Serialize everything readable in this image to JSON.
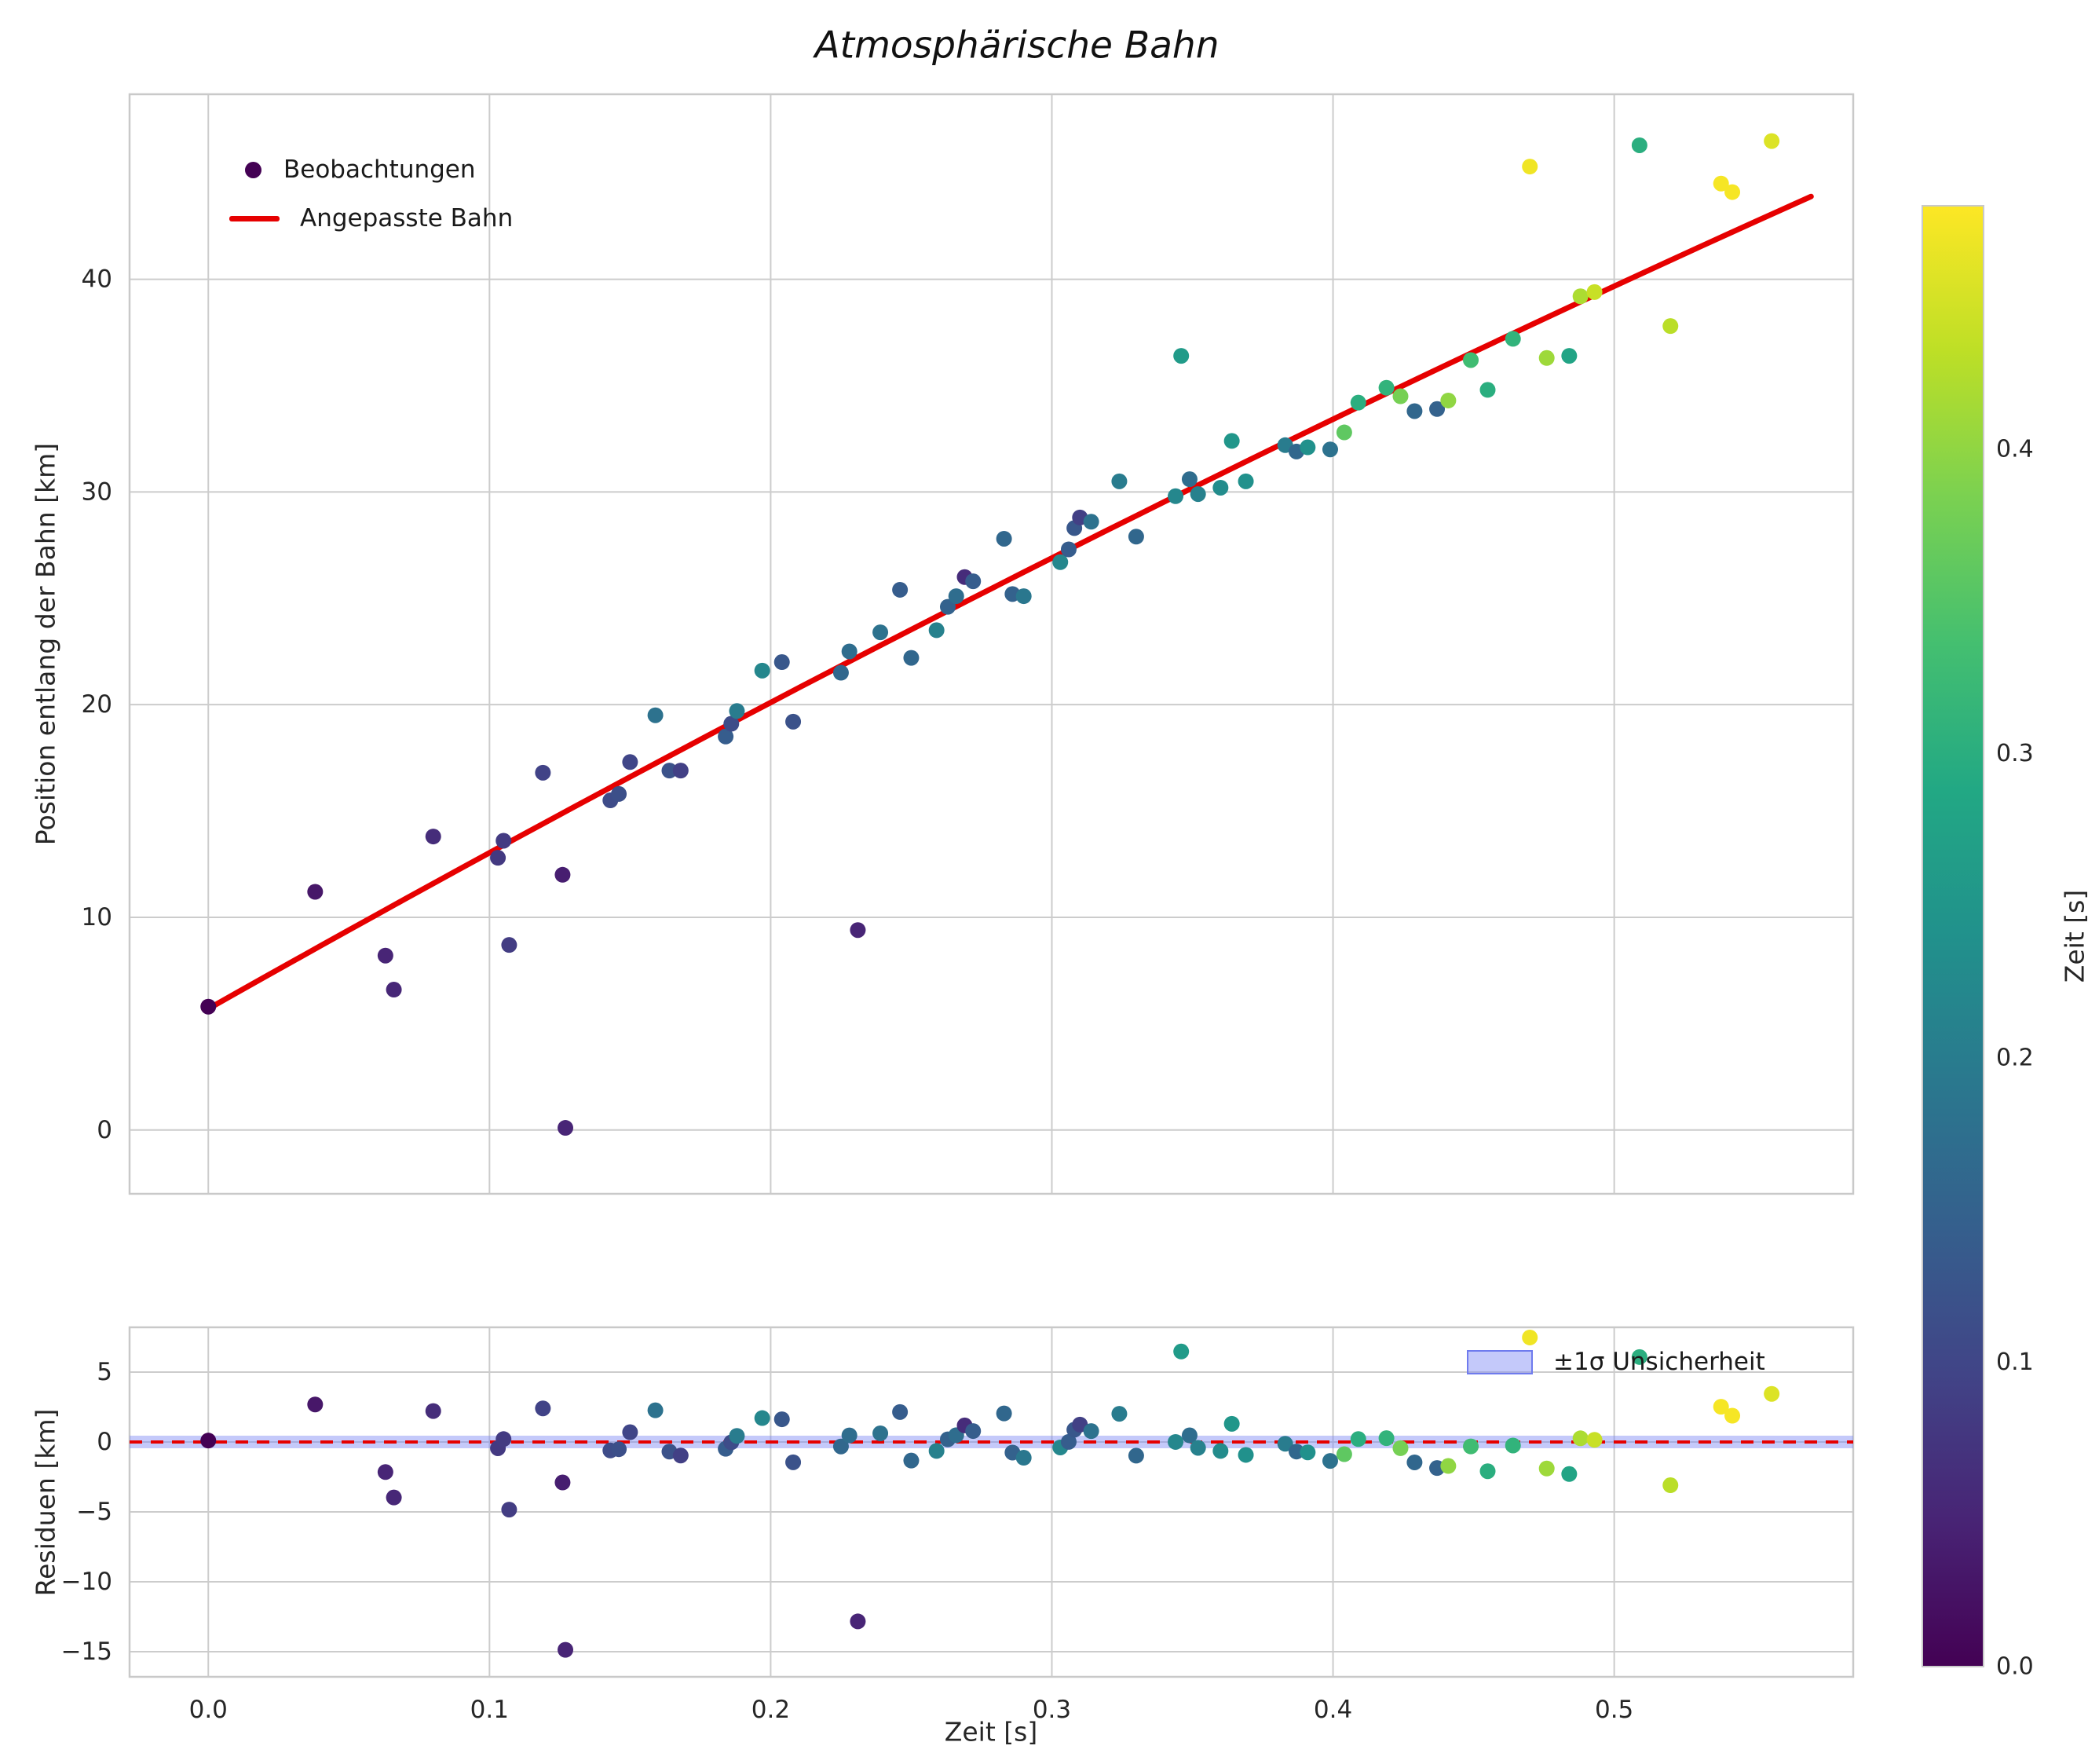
{
  "chart_data": {
    "type": "scatter",
    "title": "Atmosphärische Bahn",
    "xlabel": "Zeit [s]",
    "ylabel_main": "Position entlang der Bahn [km]",
    "ylabel_residuals": "Residuen [km]",
    "colorbar_label": "Zeit [s]",
    "legend": {
      "observations": "Beobachtungen",
      "fit": "Angepasste Bahn",
      "uncertainty": "±1σ Unsicherheit"
    },
    "xlim": [
      -0.028,
      0.585
    ],
    "ylim_main": [
      -3.0,
      48.7
    ],
    "ylim_residuals": [
      -16.8,
      8.2
    ],
    "xticks": {
      "values": [
        0.0,
        0.1,
        0.2,
        0.3,
        0.4,
        0.5
      ],
      "labels": [
        "0.0",
        "0.1",
        "0.2",
        "0.3",
        "0.4",
        "0.5"
      ]
    },
    "yticks_main": {
      "values": [
        0,
        10,
        20,
        30,
        40
      ],
      "labels": [
        "0",
        "10",
        "20",
        "30",
        "40"
      ]
    },
    "yticks_residuals": {
      "values": [
        -15,
        -10,
        -5,
        0,
        5
      ],
      "labels": [
        "−15",
        "−10",
        "−5",
        "0",
        "5"
      ]
    },
    "colorbar": {
      "vmin": 0.0,
      "vmax": 0.48,
      "ticks": {
        "values": [
          0.0,
          0.1,
          0.2,
          0.3,
          0.4
        ],
        "labels": [
          "0.0",
          "0.1",
          "0.2",
          "0.3",
          "0.4"
        ]
      }
    },
    "fit": {
      "a": 5.7,
      "b": 74.7,
      "c": -13.5,
      "t_min": 0.0,
      "t_max": 0.57
    },
    "uncertainty_band": {
      "half_width": 0.45
    },
    "colors": {
      "fit_line": "#e60000",
      "zero_line": "#e60000",
      "band_fill": "rgba(125,135,245,0.45)",
      "band_edge": "#6f7bee",
      "grid": "#cccccc",
      "frame": "#c9c9c9",
      "tick_text": "#262626",
      "marker_dark": "#440154"
    },
    "viridis_stops": [
      "#440154",
      "#482475",
      "#414487",
      "#355f8d",
      "#2a788e",
      "#21918c",
      "#22a884",
      "#44bf70",
      "#7ad151",
      "#bddf26",
      "#fde725"
    ],
    "points": [
      [
        0.0,
        5.8,
        0.0
      ],
      [
        0.038,
        11.2,
        0.03
      ],
      [
        0.063,
        8.2,
        0.05
      ],
      [
        0.066,
        6.6,
        0.052
      ],
      [
        0.08,
        13.8,
        0.062
      ],
      [
        0.103,
        12.8,
        0.08
      ],
      [
        0.105,
        13.6,
        0.082
      ],
      [
        0.107,
        8.7,
        0.085
      ],
      [
        0.119,
        16.8,
        0.095
      ],
      [
        0.126,
        12.0,
        0.04
      ],
      [
        0.127,
        0.1,
        0.05
      ],
      [
        0.143,
        15.5,
        0.11
      ],
      [
        0.146,
        15.8,
        0.115
      ],
      [
        0.15,
        17.3,
        0.1
      ],
      [
        0.159,
        19.5,
        0.18
      ],
      [
        0.164,
        16.9,
        0.12
      ],
      [
        0.168,
        16.9,
        0.09
      ],
      [
        0.184,
        18.5,
        0.14
      ],
      [
        0.186,
        19.1,
        0.11
      ],
      [
        0.188,
        19.7,
        0.2
      ],
      [
        0.197,
        21.6,
        0.22
      ],
      [
        0.204,
        22.0,
        0.13
      ],
      [
        0.208,
        19.2,
        0.12
      ],
      [
        0.225,
        21.5,
        0.16
      ],
      [
        0.228,
        22.5,
        0.17
      ],
      [
        0.231,
        9.4,
        0.05
      ],
      [
        0.239,
        23.4,
        0.18
      ],
      [
        0.246,
        25.4,
        0.14
      ],
      [
        0.25,
        22.2,
        0.16
      ],
      [
        0.259,
        23.5,
        0.21
      ],
      [
        0.263,
        24.6,
        0.15
      ],
      [
        0.266,
        25.1,
        0.17
      ],
      [
        0.269,
        26.0,
        0.06
      ],
      [
        0.272,
        25.8,
        0.14
      ],
      [
        0.283,
        27.8,
        0.16
      ],
      [
        0.286,
        25.2,
        0.15
      ],
      [
        0.29,
        25.1,
        0.19
      ],
      [
        0.303,
        26.7,
        0.22
      ],
      [
        0.306,
        27.3,
        0.14
      ],
      [
        0.308,
        28.3,
        0.13
      ],
      [
        0.31,
        28.8,
        0.09
      ],
      [
        0.314,
        28.6,
        0.18
      ],
      [
        0.324,
        30.5,
        0.2
      ],
      [
        0.33,
        27.9,
        0.16
      ],
      [
        0.344,
        29.8,
        0.22
      ],
      [
        0.346,
        36.4,
        0.26
      ],
      [
        0.349,
        30.6,
        0.17
      ],
      [
        0.352,
        29.9,
        0.21
      ],
      [
        0.36,
        30.2,
        0.23
      ],
      [
        0.364,
        32.4,
        0.25
      ],
      [
        0.369,
        30.5,
        0.24
      ],
      [
        0.383,
        32.2,
        0.2
      ],
      [
        0.387,
        31.9,
        0.16
      ],
      [
        0.391,
        32.1,
        0.24
      ],
      [
        0.399,
        32.0,
        0.18
      ],
      [
        0.404,
        32.8,
        0.36
      ],
      [
        0.409,
        34.2,
        0.3
      ],
      [
        0.419,
        34.9,
        0.31
      ],
      [
        0.424,
        34.5,
        0.38
      ],
      [
        0.429,
        33.8,
        0.16
      ],
      [
        0.437,
        33.9,
        0.15
      ],
      [
        0.441,
        34.3,
        0.4
      ],
      [
        0.449,
        36.2,
        0.33
      ],
      [
        0.455,
        34.8,
        0.3
      ],
      [
        0.464,
        37.2,
        0.31
      ],
      [
        0.47,
        45.3,
        0.47
      ],
      [
        0.476,
        36.3,
        0.41
      ],
      [
        0.484,
        36.4,
        0.28
      ],
      [
        0.488,
        39.2,
        0.42
      ],
      [
        0.493,
        39.4,
        0.44
      ],
      [
        0.509,
        46.3,
        0.3
      ],
      [
        0.52,
        37.8,
        0.43
      ],
      [
        0.538,
        44.5,
        0.475
      ],
      [
        0.542,
        44.1,
        0.475
      ],
      [
        0.556,
        46.5,
        0.455
      ]
    ]
  }
}
